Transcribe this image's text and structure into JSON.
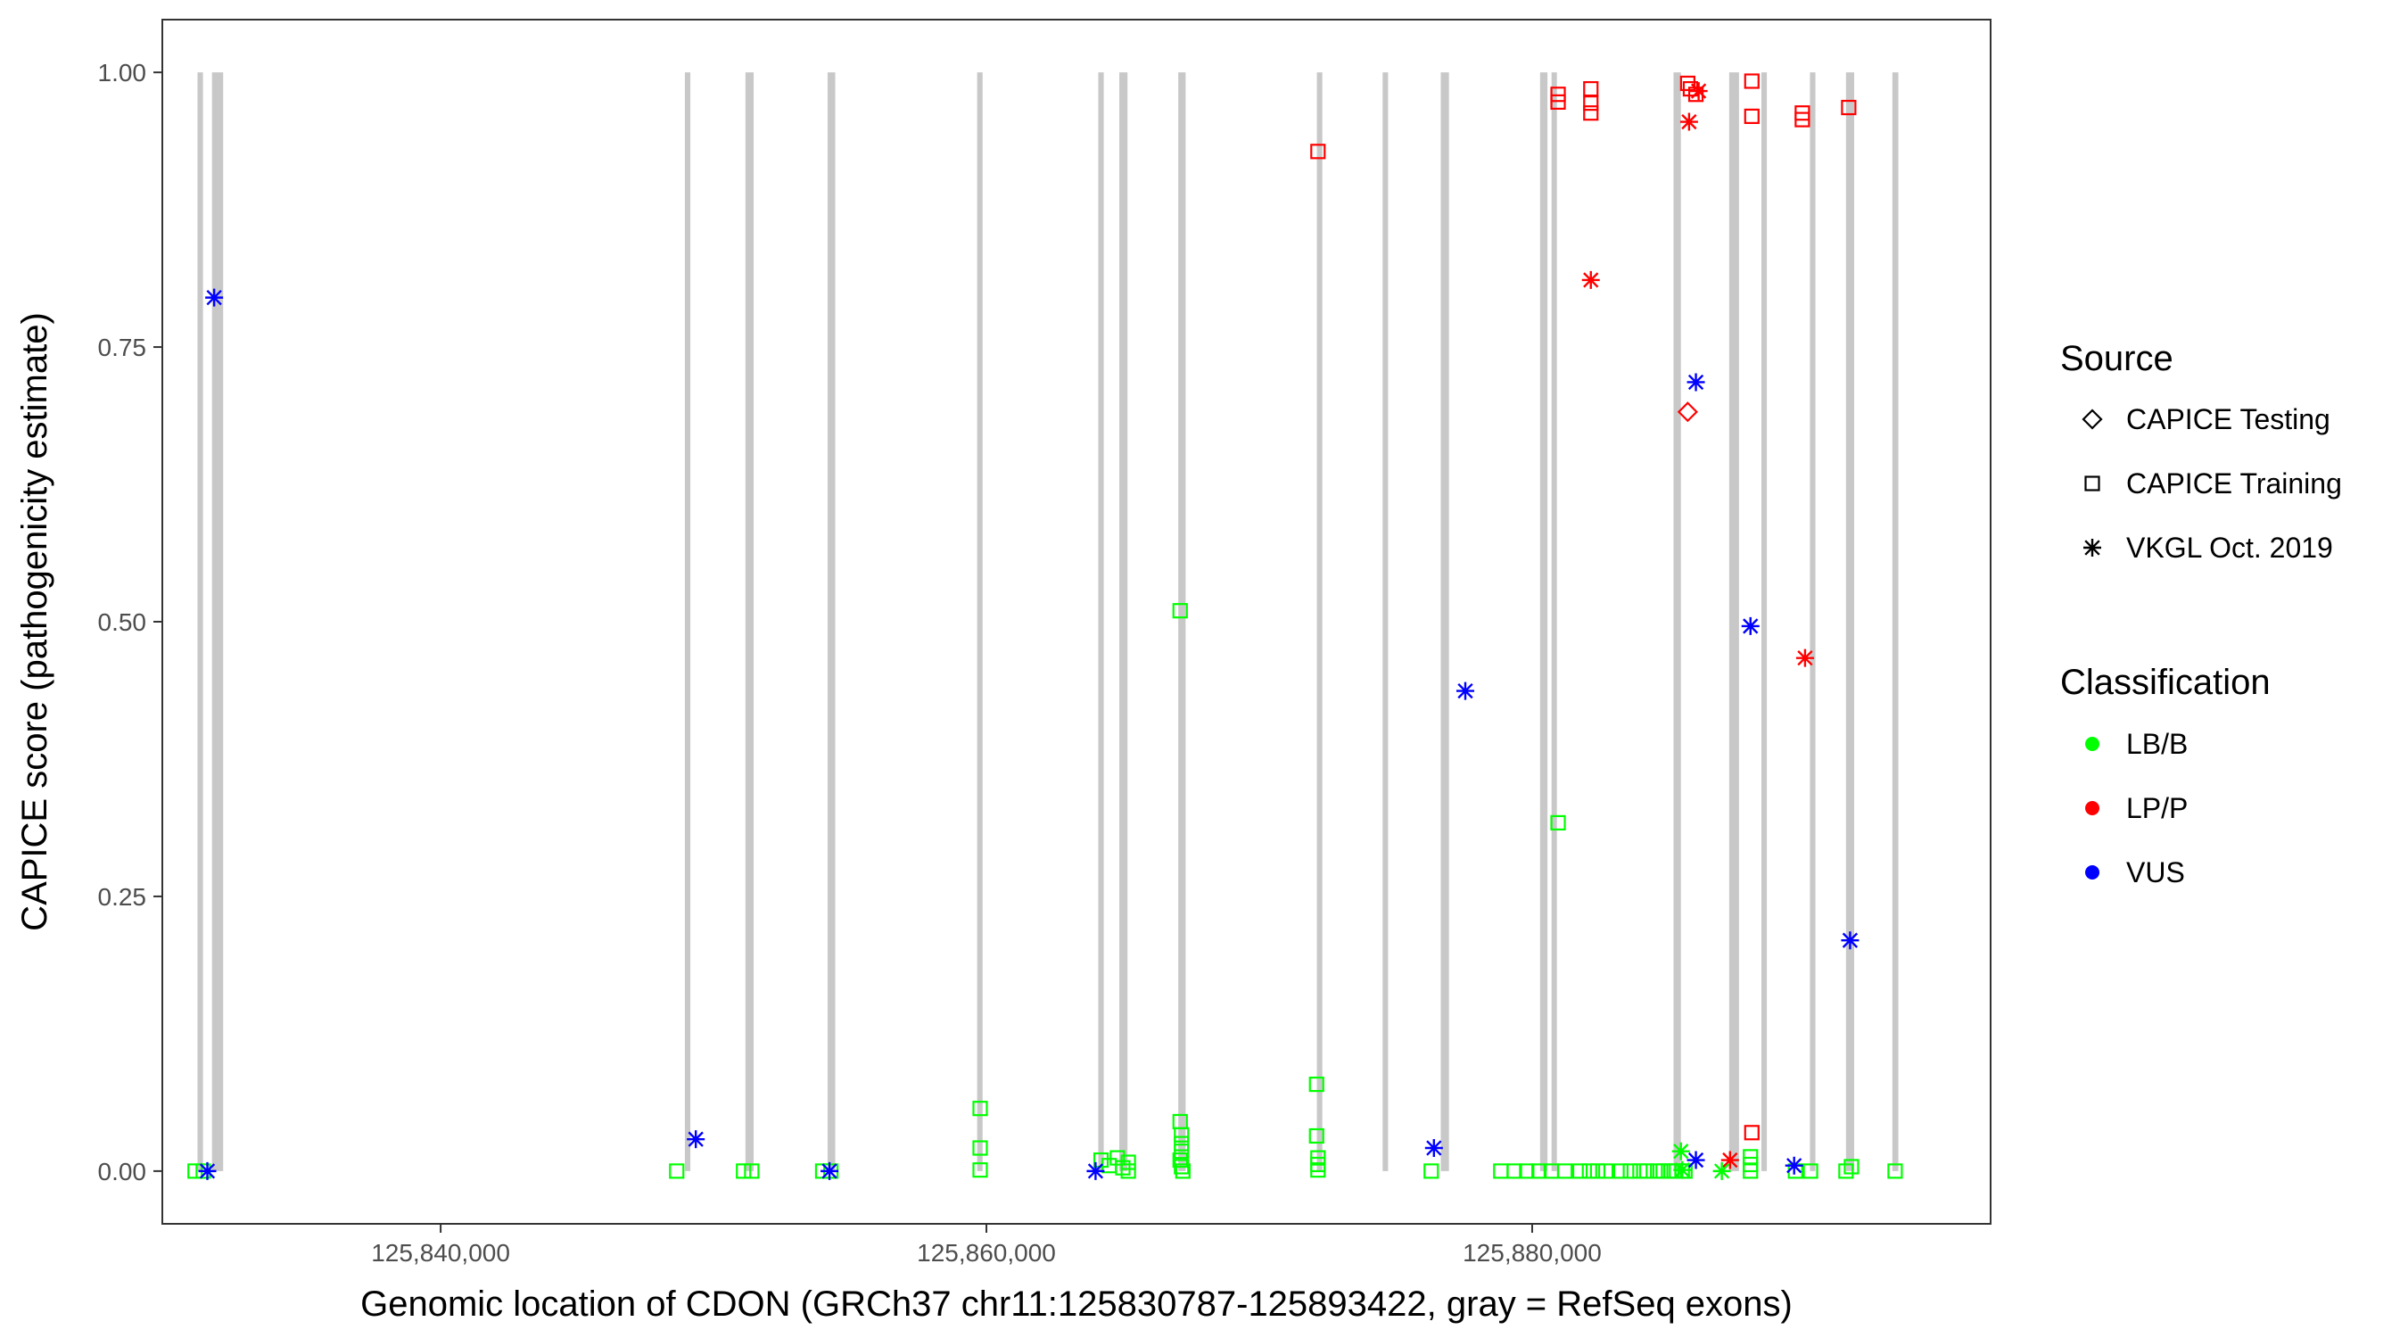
{
  "chart_data": {
    "type": "scatter",
    "title": "",
    "xlabel": "Genomic location of CDON (GRCh37 chr11:125830787-125893422, gray = RefSeq exons)",
    "ylabel": "CAPICE score (pathogenicity estimate)",
    "xlim": [
      125829800,
      125896800
    ],
    "ylim": [
      -0.048,
      1.048
    ],
    "x_ticks": [
      125840000,
      125860000,
      125880000
    ],
    "x_tick_labels": [
      "125,840,000",
      "125,860,000",
      "125,880,000"
    ],
    "y_ticks": [
      0,
      0.25,
      0.5,
      0.75,
      1.0
    ],
    "y_tick_labels": [
      "0.00",
      "0.25",
      "0.50",
      "0.75",
      "1.00"
    ],
    "grid": false,
    "exon_color": "#c8c8c8",
    "exons": [
      [
        125831090,
        125831290
      ],
      [
        125831620,
        125832030
      ],
      [
        125848950,
        125849150
      ],
      [
        125851170,
        125851470
      ],
      [
        125854180,
        125854460
      ],
      [
        125859660,
        125859860
      ],
      [
        125864100,
        125864300
      ],
      [
        125864870,
        125865170
      ],
      [
        125867030,
        125867300
      ],
      [
        125872110,
        125872310
      ],
      [
        125874520,
        125874720
      ],
      [
        125876650,
        125876950
      ],
      [
        125880290,
        125880560
      ],
      [
        125880710,
        125880900
      ],
      [
        125885180,
        125885450
      ],
      [
        125887220,
        125887580
      ],
      [
        125888400,
        125888600
      ],
      [
        125890180,
        125890380
      ],
      [
        125891500,
        125891800
      ],
      [
        125893200,
        125893420
      ]
    ],
    "legend": {
      "position": "right",
      "source_title": "Source",
      "source_items": [
        {
          "label": "CAPICE Testing",
          "shape": "diamond"
        },
        {
          "label": "CAPICE Training",
          "shape": "square"
        },
        {
          "label": "VKGL Oct. 2019",
          "shape": "asterisk"
        }
      ],
      "class_title": "Classification",
      "class_items": [
        {
          "label": "LB/B",
          "color": "#00ff00"
        },
        {
          "label": "LP/P",
          "color": "#ff0000"
        },
        {
          "label": "VUS",
          "color": "#0000ff"
        }
      ]
    },
    "series": [
      {
        "source": "CAPICE Training",
        "classification": "LB/B",
        "shape": "square",
        "color": "#00ff00",
        "points": [
          [
            125831000,
            0.0
          ],
          [
            125831300,
            0.0
          ],
          [
            125848650,
            0.0
          ],
          [
            125851100,
            0.0
          ],
          [
            125851400,
            0.0
          ],
          [
            125854000,
            0.0
          ],
          [
            125854300,
            0.0
          ],
          [
            125859770,
            0.057
          ],
          [
            125859770,
            0.021
          ],
          [
            125859770,
            0.001
          ],
          [
            125864200,
            0.01
          ],
          [
            125864500,
            0.005
          ],
          [
            125864800,
            0.012
          ],
          [
            125865000,
            0.003
          ],
          [
            125865200,
            0.008
          ],
          [
            125865200,
            0.0
          ],
          [
            125867100,
            0.51
          ],
          [
            125867100,
            0.045
          ],
          [
            125867150,
            0.033
          ],
          [
            125867150,
            0.025
          ],
          [
            125867150,
            0.018
          ],
          [
            125867100,
            0.01
          ],
          [
            125867150,
            0.004
          ],
          [
            125867200,
            0.0
          ],
          [
            125872100,
            0.079
          ],
          [
            125872100,
            0.032
          ],
          [
            125872150,
            0.012
          ],
          [
            125872150,
            0.006
          ],
          [
            125872150,
            0.001
          ],
          [
            125876300,
            0.0
          ],
          [
            125878850,
            0.0
          ],
          [
            125879350,
            0.0
          ],
          [
            125879800,
            0.0
          ],
          [
            125880250,
            0.0
          ],
          [
            125880700,
            0.0
          ],
          [
            125881200,
            0.0
          ],
          [
            125881750,
            0.0
          ],
          [
            125882100,
            0.0
          ],
          [
            125882400,
            0.0
          ],
          [
            125882700,
            0.0
          ],
          [
            125883250,
            0.0
          ],
          [
            125883600,
            0.0
          ],
          [
            125883950,
            0.0
          ],
          [
            125884200,
            0.0
          ],
          [
            125884600,
            0.0
          ],
          [
            125884800,
            0.0
          ],
          [
            125885000,
            0.0
          ],
          [
            125885200,
            0.0
          ],
          [
            125885500,
            0.0
          ],
          [
            125880950,
            0.317
          ],
          [
            125885600,
            0.0
          ],
          [
            125888000,
            0.013
          ],
          [
            125888000,
            0.006
          ],
          [
            125888000,
            0.0
          ],
          [
            125889650,
            0.0
          ],
          [
            125890200,
            0.0
          ],
          [
            125891500,
            0.0
          ],
          [
            125891700,
            0.004
          ],
          [
            125893300,
            0.0
          ]
        ]
      },
      {
        "source": "CAPICE Training",
        "classification": "LP/P",
        "shape": "square",
        "color": "#ff0000",
        "points": [
          [
            125872150,
            0.928
          ],
          [
            125880950,
            0.98
          ],
          [
            125880950,
            0.973
          ],
          [
            125882150,
            0.985
          ],
          [
            125882150,
            0.972
          ],
          [
            125882150,
            0.963
          ],
          [
            125885700,
            0.99
          ],
          [
            125885800,
            0.985
          ],
          [
            125886000,
            0.98
          ],
          [
            125888050,
            0.992
          ],
          [
            125888050,
            0.96
          ],
          [
            125889900,
            0.963
          ],
          [
            125889900,
            0.957
          ],
          [
            125891600,
            0.968
          ],
          [
            125888050,
            0.035
          ]
        ]
      },
      {
        "source": "CAPICE Testing",
        "classification": "LP/P",
        "shape": "diamond",
        "color": "#ff0000",
        "points": [
          [
            125885700,
            0.691
          ]
        ]
      },
      {
        "source": "VKGL Oct. 2019",
        "classification": "VUS",
        "shape": "asterisk",
        "color": "#0000ff",
        "points": [
          [
            125831700,
            0.795
          ],
          [
            125831450,
            0.0
          ],
          [
            125849350,
            0.029
          ],
          [
            125854250,
            0.0
          ],
          [
            125864000,
            0.0
          ],
          [
            125876400,
            0.021
          ],
          [
            125877550,
            0.437
          ],
          [
            125886000,
            0.718
          ],
          [
            125886000,
            0.01
          ],
          [
            125888000,
            0.496
          ],
          [
            125889600,
            0.005
          ],
          [
            125891650,
            0.21
          ]
        ]
      },
      {
        "source": "VKGL Oct. 2019",
        "classification": "LP/P",
        "shape": "asterisk",
        "color": "#ff0000",
        "points": [
          [
            125882150,
            0.811
          ],
          [
            125885750,
            0.955
          ],
          [
            125886100,
            0.983
          ],
          [
            125887250,
            0.01
          ],
          [
            125890000,
            0.467
          ]
        ]
      },
      {
        "source": "VKGL Oct. 2019",
        "classification": "LB/B",
        "shape": "asterisk",
        "color": "#00ff00",
        "points": [
          [
            125885450,
            0.018
          ],
          [
            125885500,
            0.001
          ],
          [
            125886950,
            0.0
          ]
        ]
      }
    ]
  }
}
